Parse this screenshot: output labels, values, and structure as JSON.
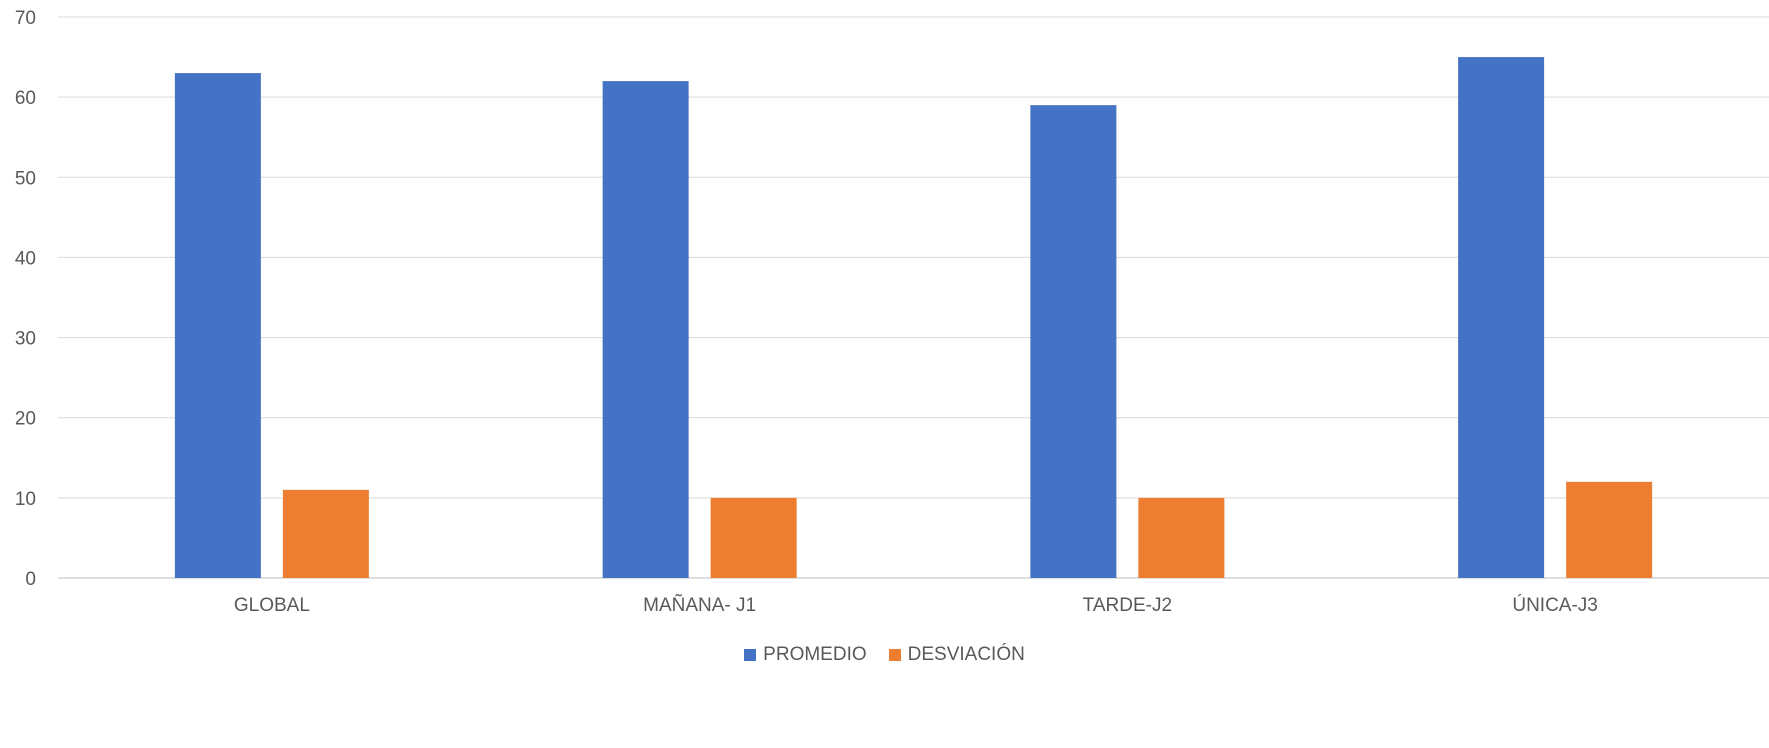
{
  "chart_data": {
    "type": "bar",
    "categories": [
      "GLOBAL",
      "MAÑANA- J1",
      "TARDE-J2",
      "ÚNICA-J3"
    ],
    "series": [
      {
        "name": "PROMEDIO",
        "values": [
          63,
          62,
          59,
          65
        ],
        "color": "#4472C4"
      },
      {
        "name": "DESVIACIÓN",
        "values": [
          11,
          10,
          10,
          12
        ],
        "color": "#ED7D31"
      }
    ],
    "ylim": [
      0,
      70
    ],
    "yticks": [
      0,
      10,
      20,
      30,
      40,
      50,
      60,
      70
    ],
    "grid": true,
    "legend_position": "bottom",
    "title": "",
    "xlabel": "",
    "ylabel": ""
  }
}
